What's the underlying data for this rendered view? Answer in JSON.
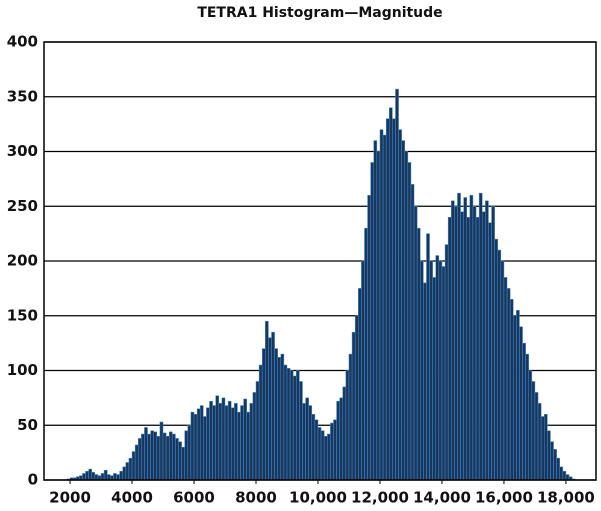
{
  "chart_data": {
    "type": "histogram",
    "title": "TETRA1 Histogram—Magnitude",
    "bins": [
      1900,
      2000,
      2100,
      2200,
      2300,
      2400,
      2500,
      2600,
      2700,
      2800,
      2900,
      3000,
      3100,
      3200,
      3300,
      3400,
      3500,
      3600,
      3700,
      3800,
      3900,
      4000,
      4100,
      4200,
      4300,
      4400,
      4500,
      4600,
      4700,
      4800,
      4900,
      5000,
      5100,
      5200,
      5300,
      5400,
      5500,
      5600,
      5700,
      5800,
      5900,
      6000,
      6100,
      6200,
      6300,
      6400,
      6500,
      6600,
      6700,
      6800,
      6900,
      7000,
      7100,
      7200,
      7300,
      7400,
      7500,
      7600,
      7700,
      7800,
      7900,
      8000,
      8100,
      8200,
      8300,
      8400,
      8500,
      8600,
      8700,
      8800,
      8900,
      9000,
      9100,
      9200,
      9300,
      9400,
      9500,
      9600,
      9700,
      9800,
      9900,
      10000,
      10100,
      10200,
      10300,
      10400,
      10500,
      10600,
      10700,
      10800,
      10900,
      11000,
      11100,
      11200,
      11300,
      11400,
      11500,
      11600,
      11700,
      11800,
      11900,
      12000,
      12100,
      12200,
      12300,
      12400,
      12500,
      12600,
      12700,
      12800,
      12900,
      13000,
      13100,
      13200,
      13300,
      13400,
      13500,
      13600,
      13700,
      13800,
      13900,
      14000,
      14100,
      14200,
      14300,
      14400,
      14500,
      14600,
      14700,
      14800,
      14900,
      15000,
      15100,
      15200,
      15300,
      15400,
      15500,
      15600,
      15700,
      15800,
      15900,
      16000,
      16100,
      16200,
      16300,
      16400,
      16500,
      16600,
      16700,
      16800,
      16900,
      17000,
      17100,
      17200,
      17300,
      17400,
      17500,
      17600,
      17700,
      17800,
      17900,
      18000,
      18100,
      18200,
      18300
    ],
    "counts": [
      1,
      2,
      2,
      3,
      4,
      6,
      8,
      10,
      7,
      5,
      4,
      6,
      9,
      5,
      4,
      6,
      5,
      8,
      12,
      16,
      20,
      26,
      32,
      38,
      42,
      48,
      42,
      45,
      44,
      40,
      53,
      43,
      40,
      44,
      42,
      38,
      35,
      30,
      45,
      50,
      62,
      60,
      65,
      68,
      58,
      66,
      72,
      68,
      77,
      70,
      75,
      68,
      72,
      66,
      70,
      62,
      68,
      74,
      62,
      70,
      80,
      90,
      105,
      120,
      145,
      130,
      135,
      120,
      112,
      115,
      105,
      102,
      100,
      95,
      100,
      90,
      70,
      75,
      68,
      60,
      55,
      48,
      45,
      40,
      42,
      52,
      55,
      72,
      75,
      85,
      100,
      115,
      135,
      150,
      175,
      200,
      230,
      260,
      290,
      310,
      300,
      320,
      315,
      330,
      340,
      330,
      357,
      320,
      310,
      300,
      290,
      270,
      250,
      230,
      200,
      180,
      225,
      200,
      185,
      205,
      200,
      195,
      215,
      240,
      255,
      250,
      262,
      245,
      258,
      240,
      260,
      250,
      240,
      262,
      245,
      255,
      235,
      250,
      220,
      210,
      200,
      185,
      175,
      165,
      150,
      155,
      140,
      125,
      115,
      100,
      90,
      80,
      70,
      58,
      60,
      45,
      35,
      28,
      20,
      12,
      8,
      5,
      3,
      1
    ],
    "color": "#17375e",
    "edge_color": "#4a8fd0",
    "xlim": [
      1160,
      18970
    ],
    "xticks": [
      2000,
      4000,
      6000,
      8000,
      {
        "value": 10000,
        "label": "10,000"
      },
      {
        "value": 12000,
        "label": "12,000"
      },
      {
        "value": 14000,
        "label": "14,000"
      },
      {
        "value": 16000,
        "label": "16,000"
      },
      {
        "value": 18000,
        "label": "18,000"
      }
    ],
    "ylim": [
      0,
      400
    ],
    "yticks": [
      0,
      50,
      100,
      150,
      200,
      250,
      300,
      350,
      400
    ],
    "grid": true
  }
}
